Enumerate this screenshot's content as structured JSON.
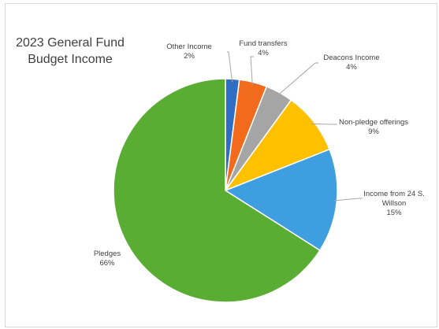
{
  "chart_data": {
    "type": "pie",
    "title_lines": [
      "2023 General Fund",
      "Budget Income"
    ],
    "slices": [
      {
        "name": "Other Income",
        "value": 2,
        "label": "2%",
        "color": "#2e6ec5"
      },
      {
        "name": "Fund transfers",
        "value": 4,
        "label": "4%",
        "color": "#f26b1d"
      },
      {
        "name": "Deacons Income",
        "value": 4,
        "label": "4%",
        "color": "#a5a5a5"
      },
      {
        "name": "Non-pledge offerings",
        "value": 9,
        "label": "9%",
        "color": "#ffc000"
      },
      {
        "name_lines": [
          "Income from 24 S.",
          "Willson"
        ],
        "value": 15,
        "label": "15%",
        "color": "#3f9ee0"
      },
      {
        "name": "Pledges",
        "value": 66,
        "label": "66%",
        "color": "#5aad33"
      }
    ],
    "start_angle": "top, clockwise",
    "data_labels": "outside with leader lines",
    "legend": "none"
  }
}
